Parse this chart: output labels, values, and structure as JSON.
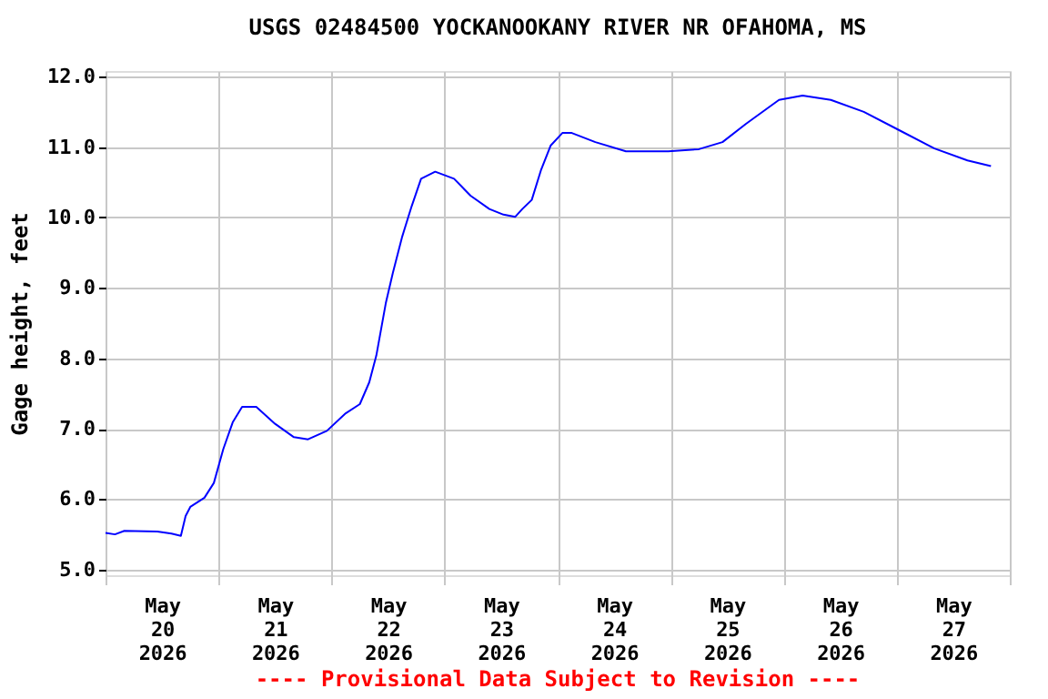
{
  "chart_data": {
    "type": "line",
    "title": "USGS 02484500 YOCKANOOKANY RIVER NR OFAHOMA, MS",
    "ylabel": "Gage height, feet",
    "annotations": [
      "---- Provisional Data Subject to Revision ----"
    ],
    "x": [
      "2026-05-20T00:00",
      "2026-05-20T02:00",
      "2026-05-20T04:00",
      "2026-05-20T11:00",
      "2026-05-20T14:00",
      "2026-05-20T16:00",
      "2026-05-20T17:00",
      "2026-05-20T18:00",
      "2026-05-20T21:00",
      "2026-05-20T23:00",
      "2026-05-21T01:00",
      "2026-05-21T03:00",
      "2026-05-21T05:00",
      "2026-05-21T08:00",
      "2026-05-21T12:00",
      "2026-05-21T16:00",
      "2026-05-21T19:00",
      "2026-05-21T23:00",
      "2026-05-22T03:00",
      "2026-05-22T06:00",
      "2026-05-22T08:00",
      "2026-05-22T09:30",
      "2026-05-22T11:30",
      "2026-05-22T13:00",
      "2026-05-22T15:00",
      "2026-05-22T17:00",
      "2026-05-22T19:00",
      "2026-05-22T22:00",
      "2026-05-23T02:00",
      "2026-05-23T05:30",
      "2026-05-23T09:30",
      "2026-05-23T12:30",
      "2026-05-23T15:00",
      "2026-05-23T16:30",
      "2026-05-23T18:30",
      "2026-05-23T20:30",
      "2026-05-23T22:30",
      "2026-05-24T01:00",
      "2026-05-24T03:00",
      "2026-05-24T08:00",
      "2026-05-24T14:30",
      "2026-05-24T23:30",
      "2026-05-25T06:00",
      "2026-05-25T11:00",
      "2026-05-25T16:00",
      "2026-05-25T23:00",
      "2026-05-26T04:00",
      "2026-05-26T10:00",
      "2026-05-26T17:00",
      "2026-05-27T00:30",
      "2026-05-27T08:00",
      "2026-05-27T15:00",
      "2026-05-27T20:00"
    ],
    "series": [
      {
        "color": "#0000ff",
        "values": [
          5.52,
          5.5,
          5.55,
          5.54,
          5.51,
          5.48,
          5.76,
          5.89,
          6.02,
          6.23,
          6.71,
          7.09,
          7.31,
          7.31,
          7.07,
          6.88,
          6.85,
          6.97,
          7.22,
          7.35,
          7.66,
          8.04,
          8.78,
          9.21,
          9.73,
          10.16,
          10.55,
          10.65,
          10.55,
          10.31,
          10.12,
          10.04,
          10.01,
          10.12,
          10.25,
          10.68,
          11.02,
          11.2,
          11.2,
          11.07,
          10.94,
          10.94,
          10.97,
          11.07,
          11.33,
          11.67,
          11.73,
          11.67,
          11.5,
          11.24,
          10.98,
          10.81,
          10.73
        ]
      }
    ],
    "xlim": [
      "2026-05-20T00:00",
      "2026-05-28T00:00"
    ],
    "xticks": [
      {
        "value": "2026-05-20T00:00",
        "label": null
      },
      {
        "value": "2026-05-20T12:00",
        "label": "May 20 2026"
      },
      {
        "value": "2026-05-21T00:00",
        "label": null
      },
      {
        "value": "2026-05-21T12:00",
        "label": "May 21 2026"
      },
      {
        "value": "2026-05-22T00:00",
        "label": null
      },
      {
        "value": "2026-05-22T12:00",
        "label": "May 22 2026"
      },
      {
        "value": "2026-05-23T00:00",
        "label": null
      },
      {
        "value": "2026-05-23T12:00",
        "label": "May 23 2026"
      },
      {
        "value": "2026-05-24T00:00",
        "label": null
      },
      {
        "value": "2026-05-24T12:00",
        "label": "May 24 2026"
      },
      {
        "value": "2026-05-25T00:00",
        "label": null
      },
      {
        "value": "2026-05-25T12:00",
        "label": "May 25 2026"
      },
      {
        "value": "2026-05-26T00:00",
        "label": null
      },
      {
        "value": "2026-05-26T12:00",
        "label": "May 26 2026"
      },
      {
        "value": "2026-05-27T00:00",
        "label": null
      },
      {
        "value": "2026-05-27T12:00",
        "label": "May 27 2026"
      },
      {
        "value": "2026-05-28T00:00",
        "label": null
      }
    ],
    "ylim": [
      4.92,
      12.08
    ],
    "yticks": [
      {
        "value": 5,
        "label": "5.0"
      },
      {
        "value": 6,
        "label": "6.0"
      },
      {
        "value": 7,
        "label": "7.0"
      },
      {
        "value": 8,
        "label": "8.0"
      },
      {
        "value": 9,
        "label": "9.0"
      },
      {
        "value": 10,
        "label": "10.0"
      },
      {
        "value": 11,
        "label": "11.0"
      },
      {
        "value": 12,
        "label": "12.0"
      }
    ],
    "grid": true
  }
}
